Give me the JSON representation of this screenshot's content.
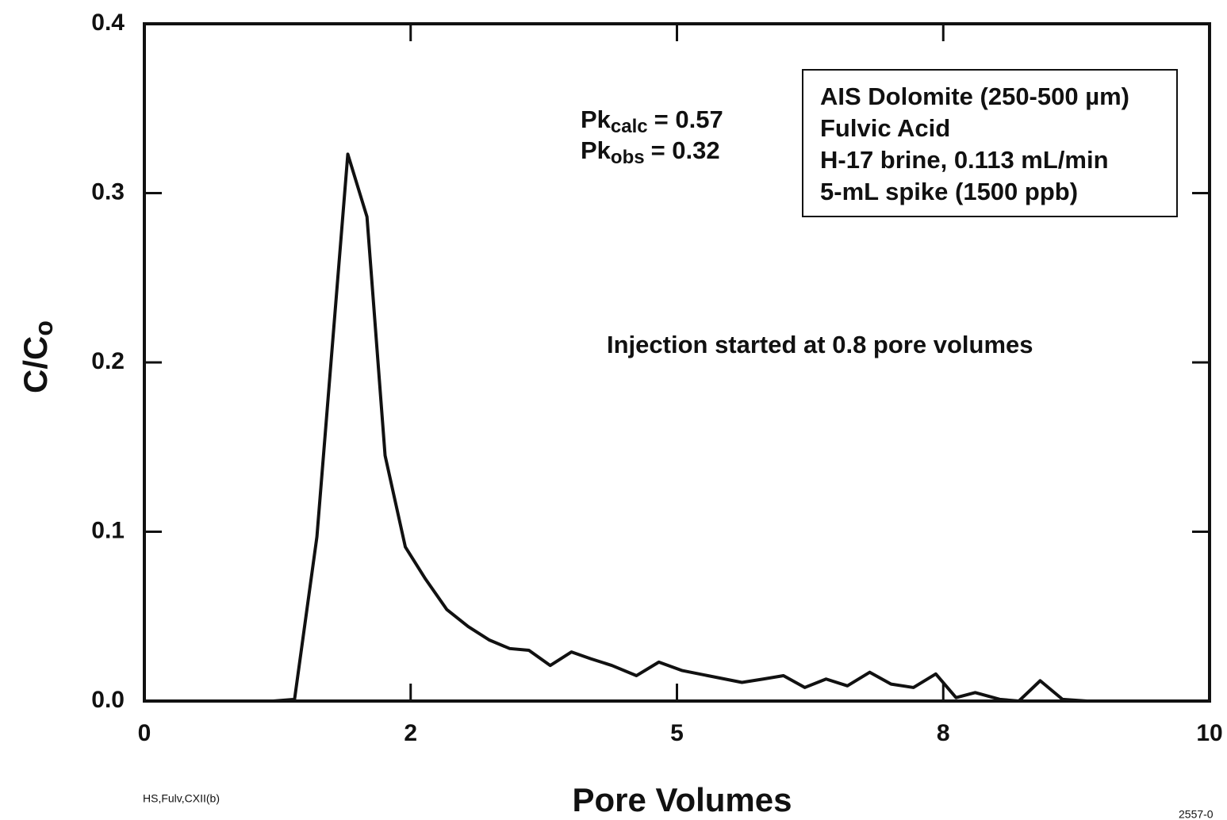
{
  "chart_data": {
    "type": "line",
    "x_label": "Pore Volumes",
    "y_label": {
      "base": "C/C",
      "sub": "o"
    },
    "x": [
      0,
      1.21,
      1.41,
      1.62,
      1.91,
      2.09,
      2.26,
      2.45,
      2.64,
      2.84,
      3.04,
      3.24,
      3.43,
      3.61,
      3.81,
      4.01,
      4.19,
      4.39,
      4.62,
      4.83,
      5.05,
      5.61,
      5.81,
      6.0,
      6.2,
      6.4,
      6.6,
      6.81,
      7.01,
      7.22,
      7.43,
      7.62,
      7.8,
      8.03,
      8.21,
      8.41,
      8.62,
      8.85,
      10
    ],
    "series": [
      {
        "color": "#111111",
        "values": [
          0,
          0,
          0.001,
          0.097,
          0.323,
          0.286,
          0.145,
          0.091,
          0.072,
          0.054,
          0.044,
          0.036,
          0.031,
          0.03,
          0.021,
          0.029,
          0.025,
          0.021,
          0.015,
          0.023,
          0.018,
          0.011,
          0.013,
          0.015,
          0.008,
          0.013,
          0.009,
          0.017,
          0.01,
          0.008,
          0.016,
          0.002,
          0.005,
          0.001,
          0,
          0.012,
          0.001,
          0,
          0
        ]
      }
    ],
    "xlim": [
      0,
      10
    ],
    "xticks": [
      0,
      {
        "value": 2.5,
        "label": "2"
      },
      5,
      {
        "value": 7.5,
        "label": "8"
      },
      10
    ],
    "ylim": [
      0,
      0.4
    ],
    "yticks": [
      {
        "value": 0,
        "label": "0.0"
      },
      0.1,
      0.2,
      0.3,
      0.4
    ],
    "annotations": {
      "pk_calc": {
        "base": "Pk",
        "sub": "calc",
        "rest": "= 0.57"
      },
      "pk_obs": {
        "base": "Pk",
        "sub": "obs",
        "rest": "= 0.32"
      },
      "injection": "Injection started at 0.8 pore volumes",
      "box": [
        "AIS Dolomite (250-500 µm)",
        "Fulvic Acid",
        "H-17 brine, 0.113 mL/min",
        "5-mL spike (1500 ppb)"
      ],
      "footnote_left": "HS,Fulv,CXII(b)",
      "footnote_right": "2557-0"
    }
  }
}
